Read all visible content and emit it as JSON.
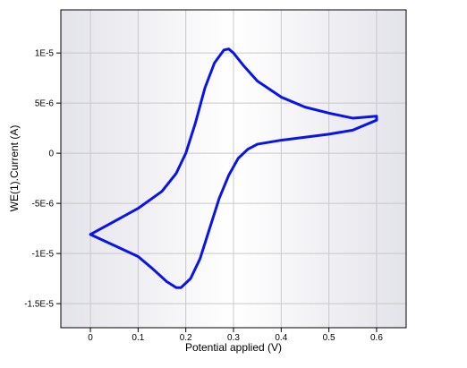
{
  "chart_data": {
    "type": "line",
    "x_label": "Potential applied (V)",
    "y_label": "WE(1).Current (A)",
    "x": [
      0,
      0.05,
      0.1,
      0.15,
      0.18,
      0.2,
      0.22,
      0.24,
      0.26,
      0.28,
      0.29,
      0.3,
      0.32,
      0.35,
      0.4,
      0.45,
      0.5,
      0.55,
      0.6,
      0.6,
      0.55,
      0.5,
      0.45,
      0.4,
      0.35,
      0.33,
      0.31,
      0.29,
      0.27,
      0.25,
      0.23,
      0.21,
      0.19,
      0.18,
      0.16,
      0.13,
      0.1,
      0.05,
      0
    ],
    "values": [
      -8.1e-06,
      -6.8e-06,
      -5.5e-06,
      -3.8e-06,
      -2e-06,
      0,
      3e-06,
      6.5e-06,
      9e-06,
      1.03e-05,
      1.04e-05,
      1e-05,
      8.8e-06,
      7.2e-06,
      5.6e-06,
      4.6e-06,
      4e-06,
      3.5e-06,
      3.7e-06,
      3.3e-06,
      2.3e-06,
      1.9e-06,
      1.6e-06,
      1.3e-06,
      9e-07,
      4e-07,
      -5e-07,
      -2.2e-06,
      -4.5e-06,
      -7.5e-06,
      -1.05e-05,
      -1.25e-05,
      -1.34e-05,
      -1.34e-05,
      -1.28e-05,
      -1.15e-05,
      -1.03e-05,
      -9.2e-06,
      -8.1e-06
    ],
    "color": "#0a14e6",
    "xlim": [
      -0.062,
      0.662
    ],
    "xticks": [
      0,
      0.1,
      0.2,
      0.3,
      0.4,
      0.5,
      0.6
    ],
    "ylim": [
      -1.74e-05,
      1.43e-05
    ],
    "yticks": [
      {
        "value": 1e-05,
        "label": "1E-5"
      },
      {
        "value": 5e-06,
        "label": "5E-6"
      },
      0,
      {
        "value": -5e-06,
        "label": "-5E-6"
      },
      {
        "value": -1e-05,
        "label": "-1E-5"
      },
      {
        "value": -1.5e-05,
        "label": "-1.5E-5"
      }
    ],
    "grid": true
  }
}
